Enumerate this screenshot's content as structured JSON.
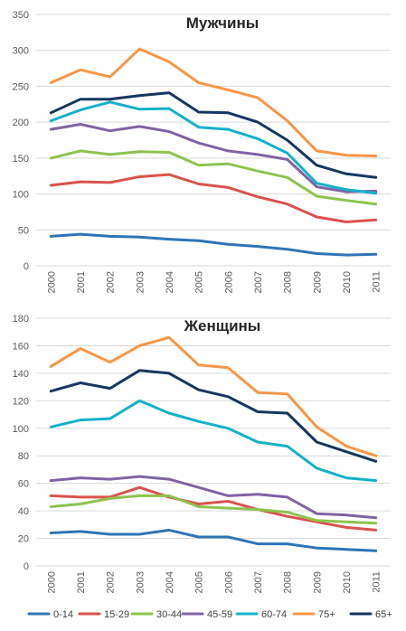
{
  "legend": {
    "placement": "bottom",
    "items": [
      "0-14",
      "15-29",
      "30-44",
      "45-59",
      "60-74",
      "75+",
      "65+"
    ]
  },
  "colors": {
    "0-14": "#2e75b6",
    "15-29": "#d9534f",
    "30-44": "#8fc34f",
    "45-59": "#8064a2",
    "60-74": "#17b1c9",
    "75+": "#f79646",
    "65+": "#17375e"
  },
  "chart_data": [
    {
      "type": "line",
      "title": "Мужчины",
      "xlabel": "",
      "ylabel": "",
      "grid": true,
      "categories": [
        "2000",
        "2001",
        "2002",
        "2003",
        "2004",
        "2005",
        "2006",
        "2007",
        "2008",
        "2009",
        "2010",
        "2011"
      ],
      "ylim": [
        0,
        350
      ],
      "yticks": [
        0,
        50,
        100,
        150,
        200,
        250,
        300,
        350
      ],
      "series": [
        {
          "name": "0-14",
          "values": [
            41,
            44,
            41,
            40,
            37,
            35,
            30,
            27,
            23,
            17,
            15,
            16
          ]
        },
        {
          "name": "15-29",
          "values": [
            112,
            117,
            116,
            124,
            127,
            114,
            109,
            96,
            86,
            68,
            61,
            64
          ]
        },
        {
          "name": "30-44",
          "values": [
            150,
            160,
            155,
            159,
            158,
            140,
            142,
            132,
            123,
            97,
            91,
            86
          ]
        },
        {
          "name": "45-59",
          "values": [
            190,
            197,
            188,
            194,
            187,
            171,
            160,
            155,
            148,
            110,
            103,
            104
          ]
        },
        {
          "name": "60-74",
          "values": [
            202,
            217,
            228,
            218,
            219,
            193,
            190,
            177,
            157,
            115,
            106,
            101
          ]
        },
        {
          "name": "75+",
          "values": [
            255,
            273,
            263,
            302,
            284,
            255,
            245,
            234,
            202,
            160,
            154,
            153
          ]
        },
        {
          "name": "65+",
          "values": [
            213,
            232,
            232,
            237,
            241,
            214,
            213,
            200,
            175,
            140,
            128,
            123
          ]
        }
      ]
    },
    {
      "type": "line",
      "title": "Женщины",
      "xlabel": "",
      "ylabel": "",
      "grid": true,
      "categories": [
        "2000",
        "2001",
        "2002",
        "2003",
        "2004",
        "2005",
        "2006",
        "2007",
        "2008",
        "2009",
        "2010",
        "2011"
      ],
      "ylim": [
        0,
        180
      ],
      "yticks": [
        0,
        20,
        40,
        60,
        80,
        100,
        120,
        140,
        160,
        180
      ],
      "series": [
        {
          "name": "0-14",
          "values": [
            24,
            25,
            23,
            23,
            26,
            21,
            21,
            16,
            16,
            13,
            12,
            11
          ]
        },
        {
          "name": "15-29",
          "values": [
            51,
            50,
            50,
            57,
            50,
            45,
            47,
            41,
            36,
            32,
            28,
            26
          ]
        },
        {
          "name": "30-44",
          "values": [
            43,
            45,
            49,
            51,
            51,
            43,
            42,
            41,
            39,
            33,
            32,
            31
          ]
        },
        {
          "name": "45-59",
          "values": [
            62,
            64,
            63,
            65,
            63,
            57,
            51,
            52,
            50,
            38,
            37,
            35
          ]
        },
        {
          "name": "60-74",
          "values": [
            101,
            106,
            107,
            120,
            111,
            105,
            100,
            90,
            87,
            71,
            64,
            62
          ]
        },
        {
          "name": "75+",
          "values": [
            145,
            158,
            148,
            160,
            166,
            146,
            144,
            126,
            125,
            101,
            87,
            80
          ]
        },
        {
          "name": "65+",
          "values": [
            127,
            133,
            129,
            142,
            140,
            128,
            123,
            112,
            111,
            90,
            83,
            76
          ]
        }
      ]
    }
  ]
}
